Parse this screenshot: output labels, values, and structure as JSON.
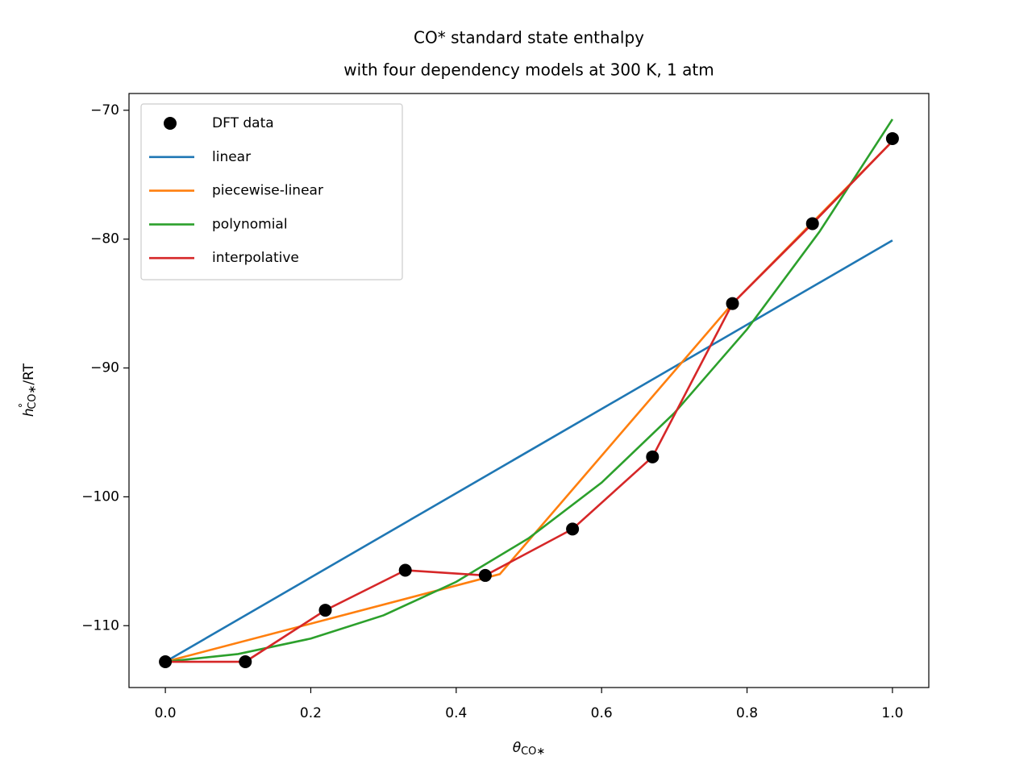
{
  "chart_data": {
    "type": "line",
    "title": [
      "CO* standard state enthalpy",
      "with four dependency models at 300 K, 1 atm"
    ],
    "xlabel": [
      "θ",
      "CO∗"
    ],
    "ylabel": [
      "h",
      "°",
      "CO∗",
      "/RT"
    ],
    "xlim": [
      -0.05,
      1.05
    ],
    "ylim": [
      -114.8,
      -68.7
    ],
    "xticks": [
      {
        "value": 0,
        "label": "0.0"
      },
      {
        "value": 0.2,
        "label": "0.2"
      },
      {
        "value": 0.4,
        "label": "0.4"
      },
      {
        "value": 0.6,
        "label": "0.6"
      },
      {
        "value": 0.8,
        "label": "0.8"
      },
      {
        "value": 1,
        "label": "1.0"
      }
    ],
    "yticks": [
      {
        "value": -70,
        "label": "−70"
      },
      {
        "value": -80,
        "label": "−80"
      },
      {
        "value": -90,
        "label": "−90"
      },
      {
        "value": -100,
        "label": "−100"
      },
      {
        "value": -110,
        "label": "−110"
      }
    ],
    "grid": false,
    "legend": "upper left",
    "series": [
      {
        "name": "DFT data",
        "color": "#000000",
        "style": "marker",
        "x": [
          0,
          0.11,
          0.22,
          0.33,
          0.44,
          0.56,
          0.67,
          0.78,
          0.89,
          1.0
        ],
        "values": [
          -112.8,
          -112.8,
          -108.8,
          -105.7,
          -106.1,
          -102.5,
          -96.9,
          -85.0,
          -78.8,
          -72.2
        ]
      },
      {
        "name": "linear",
        "color": "#1f77b4",
        "style": "line",
        "x": [
          0,
          1.0
        ],
        "values": [
          -112.8,
          -80.1
        ]
      },
      {
        "name": "piecewise-linear",
        "color": "#ff7f0e",
        "style": "line",
        "x": [
          0,
          0.46,
          0.78,
          1.0
        ],
        "values": [
          -112.8,
          -106.0,
          -85.0,
          -72.4
        ]
      },
      {
        "name": "polynomial",
        "color": "#2ca02c",
        "style": "line",
        "x": [
          0,
          0.1,
          0.2,
          0.3,
          0.4,
          0.5,
          0.6,
          0.7,
          0.8,
          0.9,
          1.0
        ],
        "values": [
          -112.8,
          -112.2,
          -111.0,
          -109.2,
          -106.6,
          -103.2,
          -98.9,
          -93.5,
          -87.0,
          -79.4,
          -70.7
        ]
      },
      {
        "name": "interpolative",
        "color": "#d62728",
        "style": "line",
        "x": [
          0,
          0.11,
          0.22,
          0.33,
          0.44,
          0.56,
          0.67,
          0.78,
          0.89,
          1.0
        ],
        "values": [
          -112.8,
          -112.8,
          -108.8,
          -105.7,
          -106.1,
          -102.5,
          -96.9,
          -85.0,
          -78.8,
          -72.4
        ]
      }
    ]
  }
}
